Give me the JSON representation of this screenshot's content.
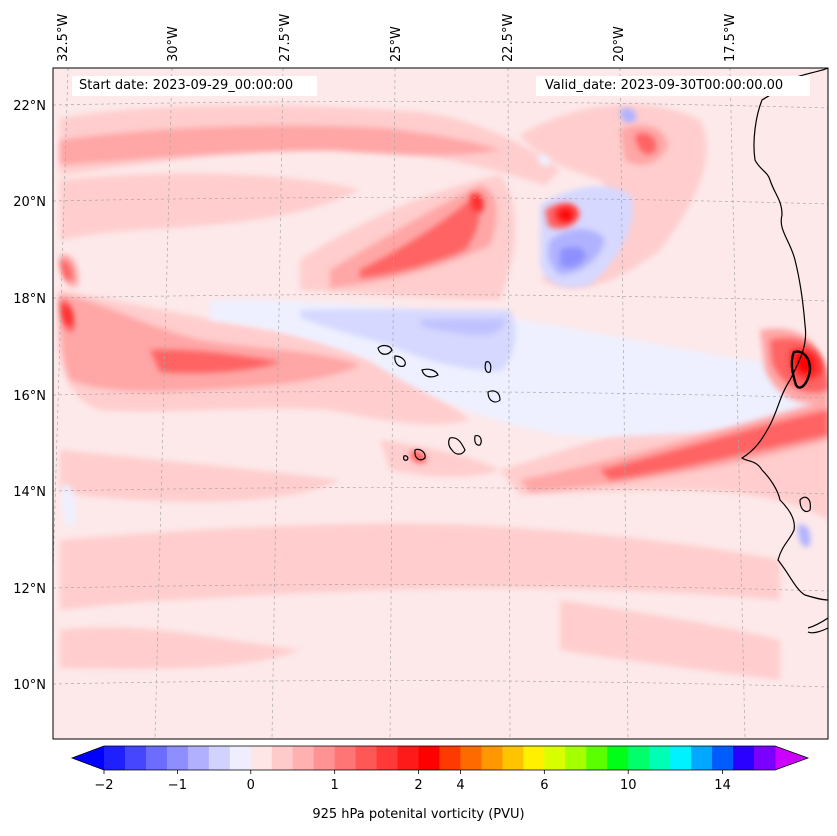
{
  "header": {
    "start_date": "Start date: 2023-09-29_00:00:00",
    "valid_date": "Valid_date: 2023-09-30T00:00:00.00"
  },
  "map": {
    "lon_ticks": [
      "32.5°W",
      "30°W",
      "27.5°W",
      "25°W",
      "22.5°W",
      "20°W",
      "17.5°W"
    ],
    "lat_ticks": [
      "22°N",
      "20°N",
      "18°N",
      "16°N",
      "14°N",
      "12°N",
      "10°N"
    ],
    "projection": "Lambert conformal",
    "gridlines": true,
    "coastlines": true,
    "background_level_color": "#fde9ea"
  },
  "colorbar": {
    "label": "925 hPa potenital vorticity (PVU)",
    "tick_labels": [
      "−2",
      "−1",
      "0",
      "1",
      "2",
      "4",
      "6",
      "10",
      "14"
    ],
    "extend": "both",
    "under_color": "#0000ff",
    "over_color": "#cc00ff",
    "colors": [
      "#2020ff",
      "#4646ff",
      "#6c6cff",
      "#8e8eff",
      "#b0b0ff",
      "#d2d2ff",
      "#eeeeff",
      "#ffe6e6",
      "#ffcaca",
      "#ffb0b0",
      "#ff9292",
      "#ff7474",
      "#ff5656",
      "#ff3838",
      "#ff1a1a",
      "#ff0000",
      "#ff3a00",
      "#ff6a00",
      "#ff9800",
      "#ffc400",
      "#fff000",
      "#d8ff00",
      "#a4ff00",
      "#5cff00",
      "#00ff18",
      "#00ff6a",
      "#00ffb4",
      "#00f2ff",
      "#00a8ff",
      "#005cff",
      "#2a00ff",
      "#7a00ff"
    ]
  }
}
